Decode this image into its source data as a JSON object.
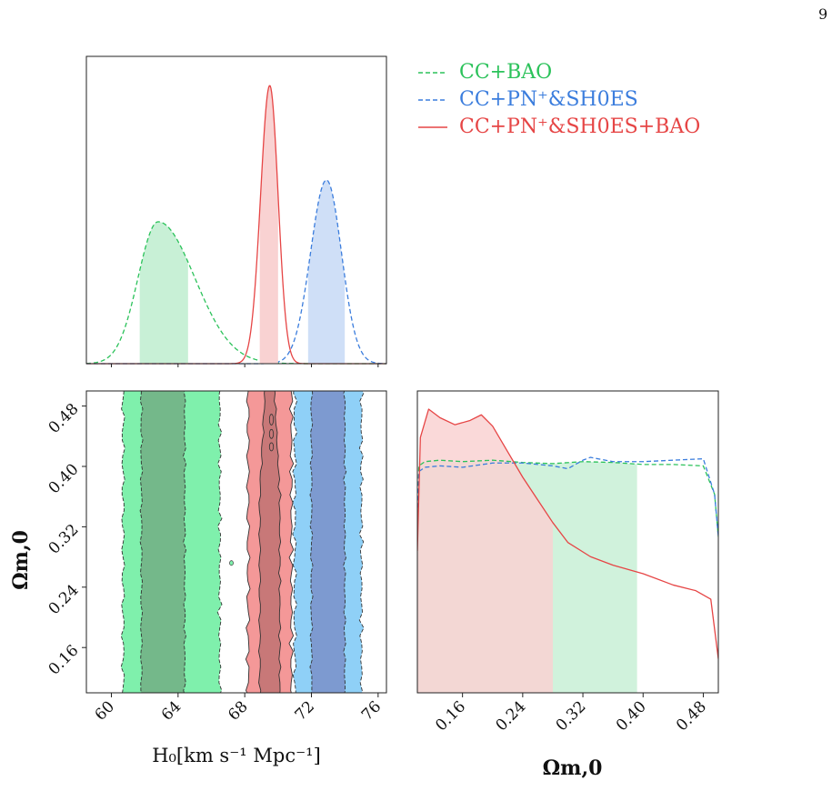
{
  "page_number": "9",
  "chart_data": [
    {
      "panel": "H0-marginal",
      "type": "line",
      "x_range": [
        58.5,
        76.5
      ],
      "series": [
        {
          "name": "CC+BAO",
          "color": "#2bc25a",
          "fill": "#c8f0d6",
          "style": "dashed",
          "mean": 62.8,
          "sigma_left": 1.2,
          "sigma_right": 2.2,
          "peak": 0.51,
          "band": [
            61.7,
            64.6
          ]
        },
        {
          "name": "CC+PN⁺&SH0ES",
          "color": "#3b7ddd",
          "fill": "#cfdff7",
          "style": "dashed",
          "mean": 72.9,
          "sigma_left": 0.95,
          "sigma_right": 0.9,
          "peak": 0.66,
          "band": [
            71.8,
            74.0
          ]
        },
        {
          "name": "CC+PN⁺&SH0ES+BAO",
          "color": "#e64545",
          "fill": "#f9d2d2",
          "style": "solid",
          "mean": 69.5,
          "sigma_left": 0.55,
          "sigma_right": 0.5,
          "peak": 1.0,
          "band": [
            68.9,
            70.0
          ]
        }
      ]
    },
    {
      "panel": "H0-Om-contours",
      "type": "area",
      "xlabel": "H₀[km s⁻¹ Mpc⁻¹]",
      "ylabel": "Ωm,0",
      "x_range": [
        58.5,
        76.5
      ],
      "y_range": [
        0.1,
        0.5
      ],
      "x_ticks": [
        "60",
        "64",
        "68",
        "72",
        "76"
      ],
      "y_ticks": [
        "0.16",
        "0.24",
        "0.32",
        "0.40",
        "0.48"
      ],
      "regions": [
        {
          "name": "CC+BAO",
          "level": "2sigma",
          "x": [
            60.7,
            66.5
          ],
          "color": "#7ff0ac"
        },
        {
          "name": "CC+BAO",
          "level": "1sigma",
          "x": [
            61.8,
            64.4
          ],
          "color": "#74b88a"
        },
        {
          "name": "CC+PN⁺&SH0ES",
          "level": "2sigma",
          "x": [
            71.0,
            75.0
          ],
          "color": "#8fd0f7"
        },
        {
          "name": "CC+PN⁺&SH0ES",
          "level": "1sigma",
          "x": [
            72.0,
            74.0
          ],
          "color": "#7d9ad0"
        },
        {
          "name": "CC+PN⁺&SH0ES+BAO",
          "level": "2sigma",
          "x": [
            68.2,
            70.8
          ],
          "color": "#f49898"
        },
        {
          "name": "CC+PN⁺&SH0ES+BAO",
          "level": "1sigma",
          "x": [
            68.9,
            70.1
          ],
          "color": "#c87878"
        }
      ]
    },
    {
      "panel": "Om-marginal",
      "type": "line",
      "xlabel": "Ωm,0",
      "x_range": [
        0.1,
        0.5
      ],
      "x_ticks": [
        "0.16",
        "0.24",
        "0.32",
        "0.40",
        "0.48"
      ],
      "series": [
        {
          "name": "CC+BAO",
          "color": "#2bc25a",
          "fill": "#c8f0d6",
          "style": "dashed",
          "band": [
            0.1,
            0.392
          ],
          "x": [
            0.1,
            0.102,
            0.11,
            0.13,
            0.16,
            0.2,
            0.24,
            0.28,
            0.32,
            0.36,
            0.4,
            0.44,
            0.48,
            0.495,
            0.5
          ],
          "y": [
            0.55,
            0.8,
            0.815,
            0.82,
            0.815,
            0.82,
            0.812,
            0.808,
            0.815,
            0.812,
            0.805,
            0.805,
            0.8,
            0.7,
            0.55
          ]
        },
        {
          "name": "CC+PN⁺&SH0ES",
          "color": "#3b7ddd",
          "fill": "none",
          "style": "dashed",
          "x": [
            0.1,
            0.102,
            0.11,
            0.13,
            0.16,
            0.2,
            0.24,
            0.28,
            0.3,
            0.32,
            0.33,
            0.36,
            0.4,
            0.44,
            0.48,
            0.495,
            0.5
          ],
          "y": [
            0.55,
            0.78,
            0.795,
            0.8,
            0.795,
            0.81,
            0.81,
            0.8,
            0.79,
            0.82,
            0.83,
            0.815,
            0.815,
            0.82,
            0.825,
            0.7,
            0.55
          ]
        },
        {
          "name": "CC+PN⁺&SH0ES+BAO",
          "color": "#e64545",
          "fill": "#f9d2d2",
          "style": "solid",
          "band": [
            0.1,
            0.28
          ],
          "x": [
            0.1,
            0.104,
            0.115,
            0.13,
            0.15,
            0.17,
            0.185,
            0.2,
            0.22,
            0.24,
            0.26,
            0.28,
            0.3,
            0.33,
            0.36,
            0.4,
            0.44,
            0.47,
            0.49,
            0.5
          ],
          "y": [
            0.5,
            0.9,
            1.0,
            0.97,
            0.945,
            0.96,
            0.98,
            0.94,
            0.85,
            0.76,
            0.68,
            0.6,
            0.53,
            0.48,
            0.45,
            0.42,
            0.38,
            0.36,
            0.33,
            0.12
          ]
        }
      ]
    }
  ],
  "legend": [
    {
      "label": "CC+BAO",
      "color": "#2bc25a",
      "style": "dashed"
    },
    {
      "label": "CC+PN⁺&SH0ES",
      "color": "#3b7ddd",
      "style": "dashed"
    },
    {
      "label": "CC+PN⁺&SH0ES+BAO",
      "color": "#e64545",
      "style": "solid"
    }
  ]
}
